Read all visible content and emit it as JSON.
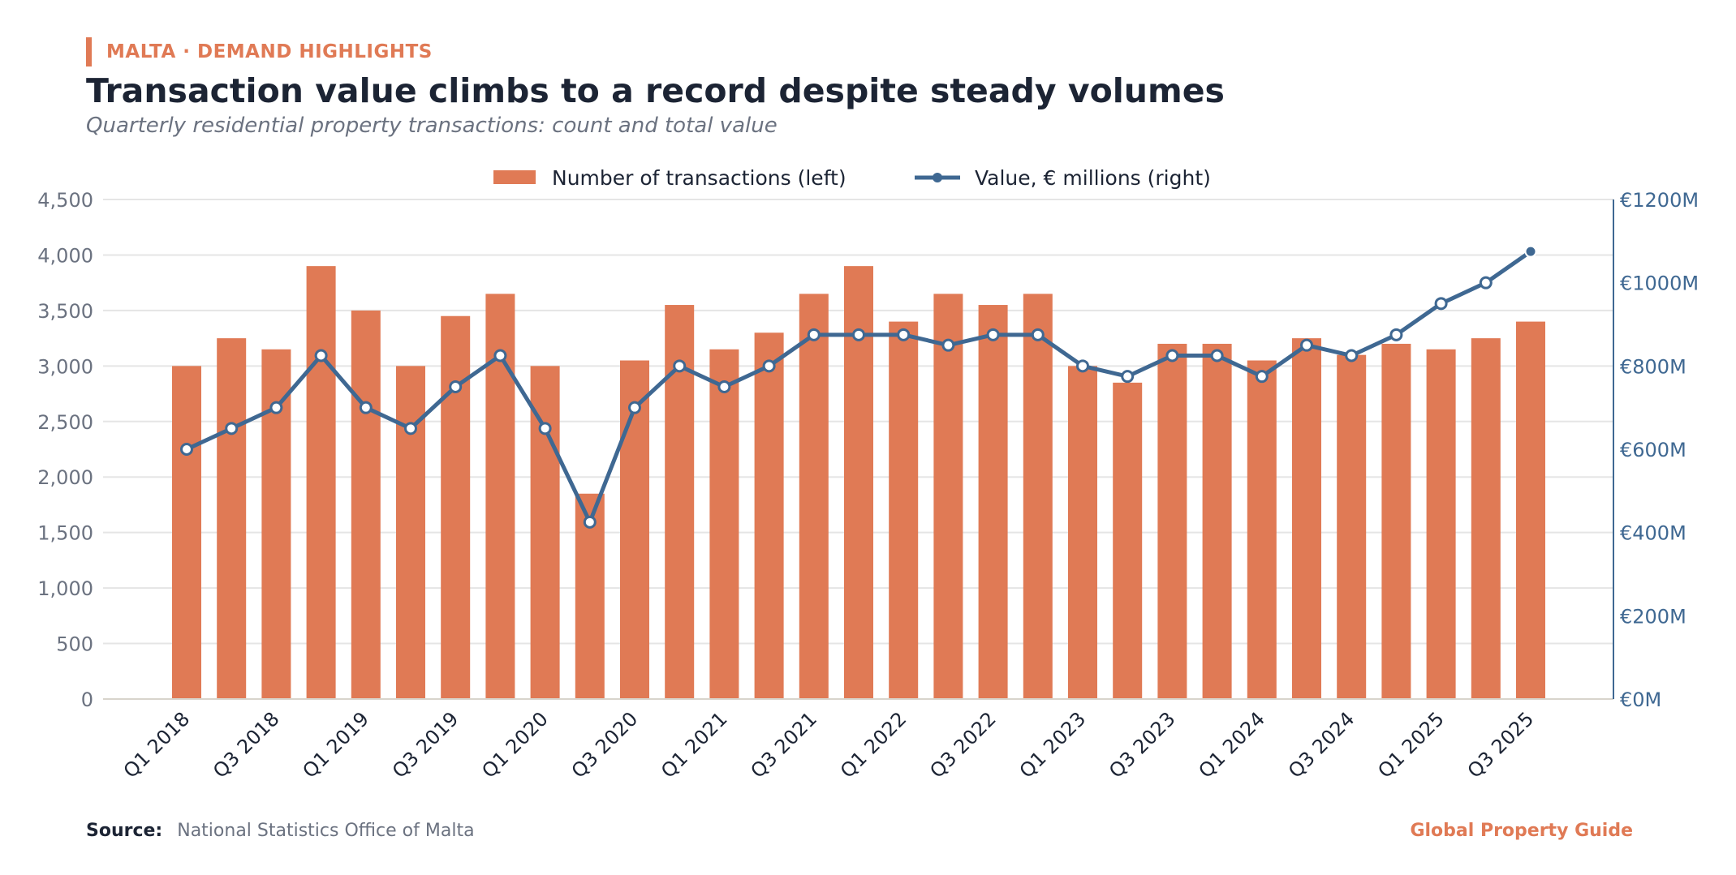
{
  "header": {
    "kicker": "MALTA · DEMAND HIGHLIGHTS",
    "title": "Transaction value climbs to a record despite steady volumes",
    "subtitle": "Quarterly residential property transactions: count and total value"
  },
  "footer": {
    "source_label": "Source:",
    "source_value": "National Statistics Office of Malta",
    "brand": "Global Property Guide"
  },
  "colors": {
    "bar": "#e07a55",
    "line": "#3f6892",
    "axis_right": "#3f6892",
    "grid": "#e5e5e5",
    "text_muted": "#6b7280",
    "text_dark": "#1c2434"
  },
  "chart_data": {
    "type": "bar",
    "categories": [
      "Q1 2018",
      "Q2 2018",
      "Q3 2018",
      "Q4 2018",
      "Q1 2019",
      "Q2 2019",
      "Q3 2019",
      "Q4 2019",
      "Q1 2020",
      "Q2 2020",
      "Q3 2020",
      "Q4 2020",
      "Q1 2021",
      "Q2 2021",
      "Q3 2021",
      "Q4 2021",
      "Q1 2022",
      "Q2 2022",
      "Q3 2022",
      "Q4 2022",
      "Q1 2023",
      "Q2 2023",
      "Q3 2023",
      "Q4 2023",
      "Q1 2024",
      "Q2 2024",
      "Q3 2024",
      "Q4 2024",
      "Q1 2025",
      "Q2 2025",
      "Q3 2025"
    ],
    "x_tick_labels": [
      "Q1 2018",
      "Q3 2018",
      "Q1 2019",
      "Q3 2019",
      "Q1 2020",
      "Q3 2020",
      "Q1 2021",
      "Q3 2021",
      "Q1 2022",
      "Q3 2022",
      "Q1 2023",
      "Q3 2023",
      "Q1 2024",
      "Q3 2024",
      "Q1 2025",
      "Q3 2025"
    ],
    "series": [
      {
        "name": "Number of transactions (left)",
        "type": "bar",
        "axis": "left",
        "values": [
          3000,
          3250,
          3150,
          3900,
          3500,
          3000,
          3450,
          3650,
          3000,
          1850,
          3050,
          3550,
          3150,
          3300,
          3650,
          3900,
          3400,
          3650,
          3550,
          3650,
          3000,
          2850,
          3200,
          3200,
          3050,
          3250,
          3100,
          3200,
          3150,
          3250,
          3400
        ]
      },
      {
        "name": "Value, € millions (right)",
        "type": "line",
        "axis": "right",
        "values": [
          600,
          650,
          700,
          825,
          700,
          650,
          750,
          825,
          650,
          425,
          700,
          800,
          750,
          800,
          875,
          875,
          875,
          850,
          875,
          875,
          800,
          775,
          825,
          825,
          775,
          850,
          825,
          875,
          950,
          1000,
          1075
        ]
      }
    ],
    "y_left": {
      "min": 0,
      "max": 4500,
      "ticks": [
        "0",
        "500",
        "1,000",
        "1,500",
        "2,000",
        "2,500",
        "3,000",
        "3,500",
        "4,000",
        "4,500"
      ]
    },
    "y_right": {
      "min": 0,
      "max": 1200,
      "ticks": [
        "€0M",
        "€200M",
        "€400M",
        "€600M",
        "€800M",
        "€1000M",
        "€1200M"
      ]
    },
    "grid": true,
    "legend_position": "top-center"
  }
}
